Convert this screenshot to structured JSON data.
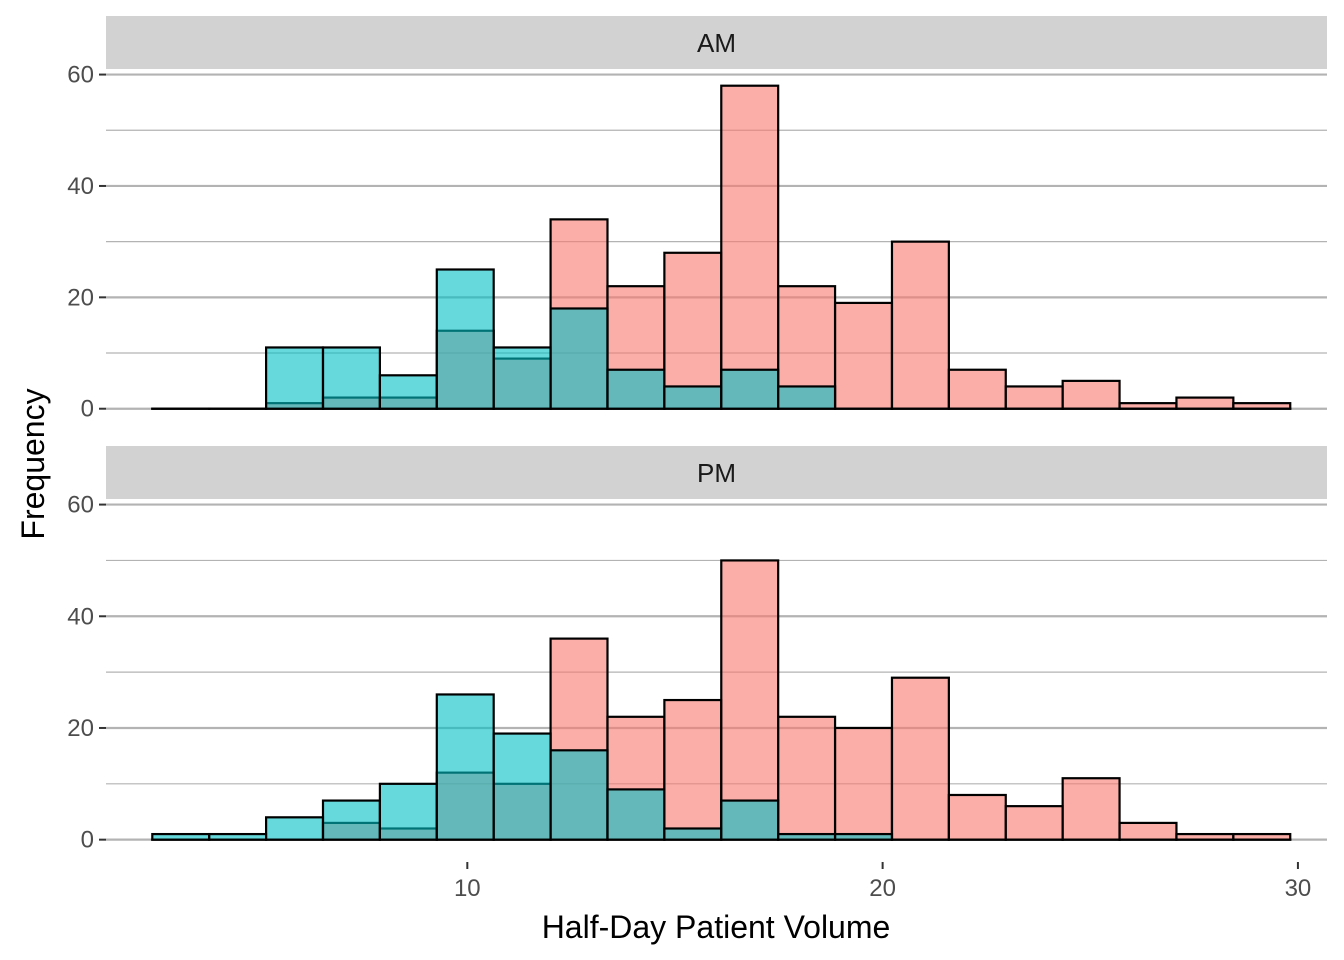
{
  "chart_data": {
    "type": "bar",
    "chart_subtype": "faceted overlaid histogram",
    "xlabel": "Half-Day Patient Volume",
    "ylabel": "Frequency",
    "x_ticks": [
      10,
      20,
      30
    ],
    "y_ticks": [
      0,
      20,
      40,
      60
    ],
    "xlim": [
      1.3,
      30.7
    ],
    "ylim": [
      -4,
      61
    ],
    "bin_width": 1.37,
    "bin_centers": [
      3.1,
      4.47,
      5.84,
      7.21,
      8.58,
      9.95,
      11.32,
      12.69,
      14.06,
      15.43,
      16.8,
      18.17,
      19.54,
      20.91,
      22.28,
      23.65,
      25.02,
      26.39,
      27.76,
      29.13
    ],
    "grid": "horizontal major and minor, light gray",
    "legend": "none",
    "colors": {
      "series_a": "#F8766D",
      "series_b": "#00BFC4",
      "bar_opacity": 0.6,
      "outline": "#000000",
      "strip_background": "#D2D2D2",
      "grid": "#B3B3B3"
    },
    "panels": [
      {
        "strip_label": "AM",
        "series": [
          {
            "color": "#F8766D",
            "values": [
              0,
              0,
              1,
              2,
              2,
              14,
              9,
              34,
              22,
              28,
              58,
              22,
              19,
              30,
              7,
              4,
              5,
              1,
              2,
              1
            ]
          },
          {
            "color": "#00BFC4",
            "values": [
              0,
              0,
              11,
              11,
              6,
              25,
              11,
              18,
              7,
              4,
              7,
              4,
              0,
              0,
              0,
              0,
              0,
              0,
              0,
              0
            ]
          }
        ]
      },
      {
        "strip_label": "PM",
        "series": [
          {
            "color": "#F8766D",
            "values": [
              0,
              0,
              0,
              3,
              2,
              12,
              10,
              36,
              22,
              25,
              50,
              22,
              20,
              29,
              8,
              6,
              11,
              3,
              1,
              1
            ]
          },
          {
            "color": "#00BFC4",
            "values": [
              1,
              1,
              4,
              7,
              10,
              26,
              19,
              16,
              9,
              2,
              7,
              1,
              1,
              0,
              0,
              0,
              0,
              0,
              0,
              0
            ]
          }
        ]
      }
    ]
  }
}
